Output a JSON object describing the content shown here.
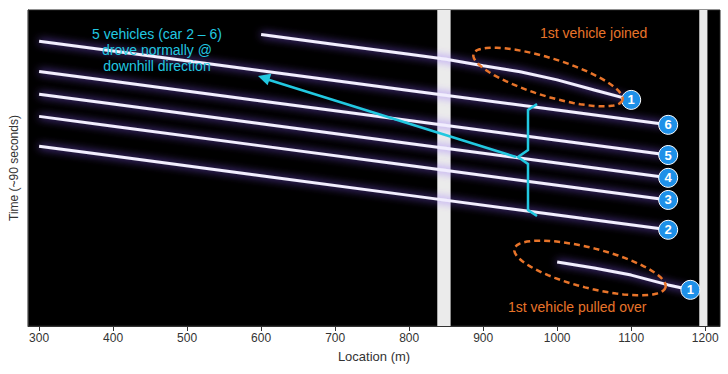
{
  "chart_data": {
    "type": "line",
    "xlabel": "Location (m)",
    "ylabel": "Time (~90 seconds)",
    "xlim": [
      285,
      1220
    ],
    "xticks": [
      300,
      400,
      500,
      600,
      700,
      800,
      900,
      1000,
      1100,
      1200
    ],
    "ylim": [
      0,
      90
    ],
    "tick_labels": "x",
    "grid": false,
    "bright_columns": [
      [
        838,
        856
      ],
      [
        1192,
        1203
      ]
    ],
    "series": [
      {
        "name": "1",
        "color": "#f2eeff",
        "x": [
          1180,
          1150,
          1100,
          1050,
          1000,
          null,
          1100,
          1050,
          1000,
          950,
          900,
          850,
          800,
          700,
          600
        ],
        "values": [
          10.3,
          11.7,
          14.5,
          16.5,
          18.2,
          null,
          64.4,
          67.2,
          70.1,
          72.4,
          74.1,
          76.0,
          77.4,
          80.2,
          83.0
        ]
      },
      {
        "name": "2",
        "color": "#f2eeff",
        "x": [
          1150,
          1000,
          800,
          600,
          400,
          300
        ],
        "values": [
          27.4,
          31.6,
          37.2,
          42.8,
          48.4,
          51.2
        ]
      },
      {
        "name": "3",
        "color": "#f2eeff",
        "x": [
          1150,
          1000,
          800,
          600,
          400,
          300
        ],
        "values": [
          35.9,
          40.1,
          45.7,
          51.3,
          56.9,
          59.7
        ]
      },
      {
        "name": "4",
        "color": "#f2eeff",
        "x": [
          1150,
          1000,
          800,
          600,
          400,
          300
        ],
        "values": [
          42.2,
          46.4,
          52.0,
          57.6,
          63.2,
          66.0
        ]
      },
      {
        "name": "5",
        "color": "#f2eeff",
        "x": [
          1150,
          1000,
          800,
          600,
          400,
          300
        ],
        "values": [
          48.7,
          52.9,
          58.5,
          64.1,
          69.7,
          72.5
        ]
      },
      {
        "name": "6",
        "color": "#f2eeff",
        "x": [
          1150,
          1000,
          800,
          600,
          400,
          300
        ],
        "values": [
          57.3,
          61.5,
          67.1,
          72.7,
          78.3,
          81.1
        ]
      }
    ],
    "annotations": [
      {
        "text": "5 vehicles (car 2 – 6)\ndrove normally @\ndownhill direction",
        "color": "#22c8e0"
      },
      {
        "text": "1st vehicle joined",
        "color": "#e8742a"
      },
      {
        "text": "1st vehicle pulled over",
        "color": "#e8742a"
      }
    ]
  }
}
